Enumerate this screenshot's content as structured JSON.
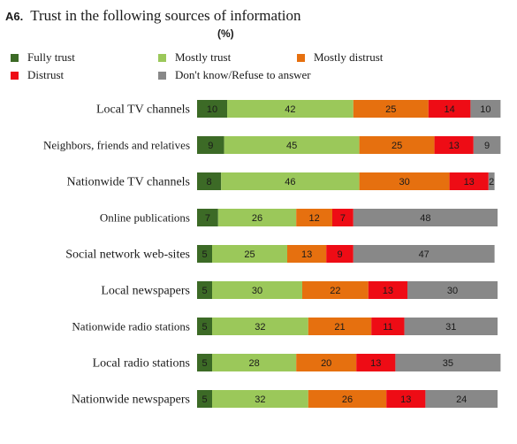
{
  "title_number": "A6.",
  "title": "Trust in the following sources of information",
  "unit": "(%)",
  "chart_data": {
    "type": "bar",
    "orientation": "horizontal",
    "stacked": true,
    "categories": [
      "Local TV channels",
      "Neighbors, friends and relatives",
      "Nationwide TV channels",
      "Online publications",
      "Social network web-sites",
      "Local newspapers",
      "Nationwide radio stations",
      "Local radio stations",
      "Nationwide newspapers"
    ],
    "series": [
      {
        "name": "Fully trust",
        "color": "#3c6a26",
        "values": [
          10,
          9,
          8,
          7,
          5,
          5,
          5,
          5,
          5
        ]
      },
      {
        "name": "Mostly trust",
        "color": "#9bc85a",
        "values": [
          42,
          45,
          46,
          26,
          25,
          30,
          32,
          28,
          32
        ]
      },
      {
        "name": "Mostly distrust",
        "color": "#e6700f",
        "values": [
          25,
          25,
          30,
          12,
          13,
          22,
          21,
          20,
          26
        ]
      },
      {
        "name": "Distrust",
        "color": "#ee0c15",
        "values": [
          14,
          13,
          13,
          7,
          9,
          13,
          11,
          13,
          13
        ]
      },
      {
        "name": "Don't know/Refuse to answer",
        "color": "#888888",
        "values": [
          10,
          9,
          2,
          48,
          47,
          30,
          31,
          35,
          24
        ]
      }
    ],
    "legend_position": "top",
    "grid": false
  }
}
